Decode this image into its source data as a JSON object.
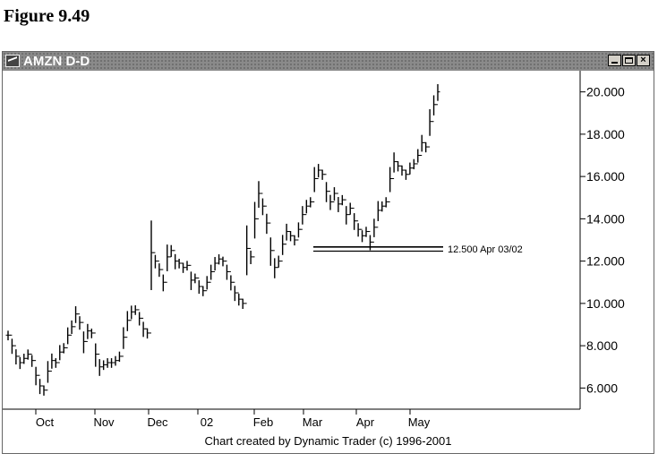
{
  "figure": {
    "caption": "Figure 9.49"
  },
  "window": {
    "title": "AMZN D-D",
    "controls": {
      "minimize": "minimize",
      "restore": "restore",
      "close": "×"
    }
  },
  "footer": {
    "credit": "Chart created by Dynamic Trader (c) 1996-2001"
  },
  "chart_data": {
    "type": "bar",
    "title": "",
    "xlabel": "",
    "ylabel": "",
    "ylim": [
      5.0,
      21.0
    ],
    "y_axis_position": "right",
    "y_ticks": [
      "20.000",
      "18.000",
      "16.000",
      "14.000",
      "12.000",
      "10.000",
      "8.000",
      "6.000"
    ],
    "x_tick_labels": [
      "Oct",
      "Nov",
      "Dec",
      "02",
      "Feb",
      "Mar",
      "Apr",
      "May"
    ],
    "series": [
      {
        "values": [
          8.5,
          8.0,
          7.5,
          7.2,
          7.4,
          7.6,
          7.3,
          6.6,
          6.1,
          5.9,
          6.8,
          7.3,
          7.2,
          7.7,
          7.9,
          8.5,
          8.9,
          9.5,
          9.1,
          8.2,
          8.7,
          8.6,
          7.6,
          7.0,
          7.1,
          7.2,
          7.2,
          7.3,
          7.5,
          8.4,
          9.2,
          9.6,
          9.7,
          9.3,
          8.8,
          8.6,
          12.4,
          12.0,
          11.6,
          11.0,
          12.2,
          12.5,
          12.0,
          11.9,
          11.7,
          11.8,
          11.1,
          11.2,
          10.8,
          10.6,
          11.0,
          11.5,
          11.9,
          12.1,
          12.0,
          11.5,
          11.0,
          10.5,
          10.2,
          10.0,
          12.6,
          12.2,
          14.0,
          15.2,
          14.6,
          13.8,
          12.5,
          11.7,
          12.0,
          12.8,
          13.4,
          13.2,
          13.0,
          13.5,
          14.2,
          14.6,
          14.8,
          15.9,
          16.3,
          16.1,
          15.3,
          14.8,
          15.2,
          14.7,
          14.9,
          14.2,
          14.5,
          13.9,
          13.5,
          13.2,
          13.4,
          12.9,
          13.6,
          14.4,
          14.6,
          14.8,
          15.9,
          16.7,
          16.5,
          16.3,
          16.1,
          16.4,
          16.6,
          17.0,
          17.6,
          17.4,
          18.6,
          19.4,
          20.0
        ]
      }
    ],
    "annotations": [
      {
        "type": "horizontal_band",
        "label": "12.500 Apr 03/02",
        "y_from": 12.47,
        "y_to": 12.67
      }
    ]
  }
}
